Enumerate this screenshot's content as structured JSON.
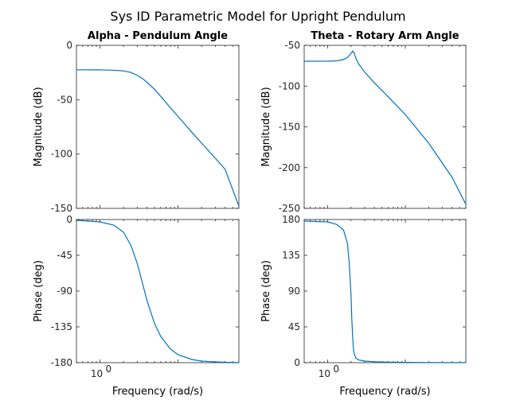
{
  "figure_title": "Sys ID Parametric Model for Upright Pendulum",
  "colors": {
    "line": "#0072BD",
    "axes": "#262626"
  },
  "chart_data": [
    {
      "type": "line",
      "title": "Alpha - Pendulum Angle",
      "xlabel": "",
      "ylabel": "Magnitude (dB)",
      "xscale": "log",
      "xlim": [
        0.5,
        60
      ],
      "ylim": [
        -150,
        0
      ],
      "yticks": [
        0,
        -50,
        -100,
        -150
      ],
      "xtick_labels": [],
      "series": [
        {
          "x": [
            0.5,
            1,
            1.5,
            2,
            2.5,
            3,
            3.5,
            4,
            5,
            6,
            8,
            10,
            15,
            20,
            30,
            40,
            60
          ],
          "y": [
            -22.5,
            -22.6,
            -22.9,
            -23.5,
            -25.0,
            -27.5,
            -30.5,
            -34.0,
            -40.5,
            -47.0,
            -57.5,
            -65.5,
            -80.0,
            -90.0,
            -104.0,
            -114.0,
            -148.0
          ]
        }
      ]
    },
    {
      "type": "line",
      "title": "Theta - Rotary Arm Angle",
      "xlabel": "",
      "ylabel": "Magnitude (dB)",
      "xscale": "log",
      "xlim": [
        0.5,
        60
      ],
      "ylim": [
        -250,
        -50
      ],
      "yticks": [
        -50,
        -100,
        -150,
        -200,
        -250
      ],
      "xtick_labels": [],
      "series": [
        {
          "x": [
            0.5,
            1,
            1.3,
            1.6,
            1.8,
            2.0,
            2.1,
            2.2,
            2.3,
            2.5,
            3,
            4,
            6,
            10,
            20,
            40,
            60
          ],
          "y": [
            -69.5,
            -69.4,
            -69.0,
            -67.5,
            -65.0,
            -60.0,
            -57.0,
            -59.5,
            -65.5,
            -72.5,
            -83.0,
            -96.0,
            -113.0,
            -135.0,
            -170.0,
            -212.0,
            -245.0
          ]
        }
      ]
    },
    {
      "type": "line",
      "title": "",
      "xlabel": "Frequency  (rad/s)",
      "ylabel": "Phase (deg)",
      "xscale": "log",
      "xlim": [
        0.5,
        60
      ],
      "ylim": [
        -180,
        0
      ],
      "yticks": [
        0,
        -45,
        -90,
        -135,
        -180
      ],
      "xtick_labels": [
        {
          "value": 1,
          "base": "10",
          "exp": "0"
        }
      ],
      "series": [
        {
          "x": [
            0.5,
            1,
            1.5,
            2,
            2.5,
            3,
            3.5,
            4,
            5,
            6,
            8,
            10,
            15,
            20,
            30,
            40,
            60
          ],
          "y": [
            -1,
            -3,
            -7,
            -16,
            -33,
            -55,
            -80,
            -102,
            -131,
            -147,
            -163,
            -170,
            -176,
            -178,
            -179,
            -179.5,
            -179.8
          ]
        }
      ]
    },
    {
      "type": "line",
      "title": "",
      "xlabel": "Frequency  (rad/s)",
      "ylabel": "Phase (deg)",
      "xscale": "log",
      "xlim": [
        0.5,
        60
      ],
      "ylim": [
        0,
        180
      ],
      "yticks": [
        180,
        135,
        90,
        45,
        0
      ],
      "xtick_labels": [
        {
          "value": 1,
          "base": "10",
          "exp": "0"
        }
      ],
      "series": [
        {
          "x": [
            0.5,
            1,
            1.3,
            1.6,
            1.8,
            1.9,
            2.0,
            2.05,
            2.1,
            2.15,
            2.2,
            2.3,
            2.5,
            3,
            4,
            6,
            10,
            20,
            60
          ],
          "y": [
            178,
            177,
            174,
            167,
            150,
            125,
            85,
            55,
            32,
            18,
            11,
            6,
            3.5,
            2,
            1.2,
            0.7,
            0.4,
            0.2,
            0.1
          ]
        }
      ]
    }
  ]
}
